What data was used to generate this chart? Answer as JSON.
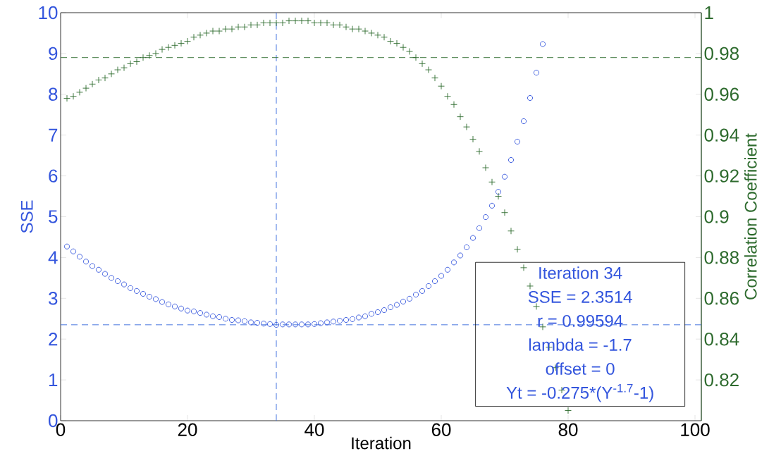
{
  "chart_data": {
    "type": "scatter",
    "xlabel": "Iteration",
    "ylabel": "SSE",
    "y2label": "Correlation Coefficient",
    "xlim": [
      0,
      101
    ],
    "xticks": [
      0,
      20,
      40,
      60,
      80,
      100
    ],
    "ylim": [
      0,
      10
    ],
    "yticks": [
      0,
      1,
      2,
      3,
      4,
      5,
      6,
      7,
      8,
      9,
      10
    ],
    "y2lim": [
      0.8,
      1
    ],
    "y2ticks": [
      0.82,
      0.84,
      0.86,
      0.88,
      0.9,
      0.92,
      0.94,
      0.96,
      0.98,
      1
    ],
    "series": [
      {
        "color": "#3355dd",
        "marker": "circle",
        "x": [
          1,
          2,
          3,
          4,
          5,
          6,
          7,
          8,
          9,
          10,
          11,
          12,
          13,
          14,
          15,
          16,
          17,
          18,
          19,
          20,
          21,
          22,
          23,
          24,
          25,
          26,
          27,
          28,
          29,
          30,
          31,
          32,
          33,
          34,
          35,
          36,
          37,
          38,
          39,
          40,
          41,
          42,
          43,
          44,
          45,
          46,
          47,
          48,
          49,
          50,
          51,
          52,
          53,
          54,
          55,
          56,
          57,
          58,
          59,
          60,
          61,
          62,
          63,
          64,
          65,
          66,
          67,
          68,
          69,
          70,
          71,
          72,
          73,
          74,
          75,
          76
        ],
        "values": [
          4.27,
          4.15,
          4.02,
          3.9,
          3.79,
          3.7,
          3.6,
          3.5,
          3.42,
          3.34,
          3.25,
          3.18,
          3.11,
          3.04,
          2.98,
          2.91,
          2.85,
          2.8,
          2.75,
          2.7,
          2.68,
          2.64,
          2.6,
          2.56,
          2.54,
          2.5,
          2.47,
          2.46,
          2.44,
          2.41,
          2.4,
          2.38,
          2.37,
          2.35,
          2.36,
          2.36,
          2.36,
          2.36,
          2.36,
          2.37,
          2.39,
          2.41,
          2.43,
          2.45,
          2.47,
          2.49,
          2.53,
          2.56,
          2.62,
          2.66,
          2.71,
          2.78,
          2.84,
          2.92,
          2.99,
          3.09,
          3.18,
          3.3,
          3.42,
          3.55,
          3.7,
          3.88,
          4.05,
          4.25,
          4.48,
          4.72,
          4.99,
          5.27,
          5.61,
          5.98,
          6.39,
          6.84,
          7.34,
          7.91,
          8.53,
          9.23
        ]
      },
      {
        "color": "#2e6b2e",
        "marker": "cross",
        "axis": "y2",
        "x": [
          1,
          2,
          3,
          4,
          5,
          6,
          7,
          8,
          9,
          10,
          11,
          12,
          13,
          14,
          15,
          16,
          17,
          18,
          19,
          20,
          21,
          22,
          23,
          24,
          25,
          26,
          27,
          28,
          29,
          30,
          31,
          32,
          33,
          34,
          35,
          36,
          37,
          38,
          39,
          40,
          41,
          42,
          43,
          44,
          45,
          46,
          47,
          48,
          49,
          50,
          51,
          52,
          53,
          54,
          55,
          56,
          57,
          58,
          59,
          60,
          61,
          62,
          63,
          64,
          65,
          66,
          67,
          68,
          69,
          70,
          71,
          72,
          73,
          74,
          75,
          76,
          77,
          78,
          79,
          80
        ],
        "values": [
          0.958,
          0.959,
          0.961,
          0.963,
          0.965,
          0.967,
          0.968,
          0.97,
          0.972,
          0.973,
          0.975,
          0.976,
          0.978,
          0.979,
          0.98,
          0.982,
          0.983,
          0.984,
          0.985,
          0.986,
          0.988,
          0.989,
          0.99,
          0.991,
          0.991,
          0.992,
          0.992,
          0.993,
          0.993,
          0.994,
          0.994,
          0.995,
          0.995,
          0.995,
          0.995,
          0.996,
          0.996,
          0.996,
          0.996,
          0.995,
          0.995,
          0.995,
          0.994,
          0.994,
          0.993,
          0.992,
          0.992,
          0.991,
          0.99,
          0.989,
          0.988,
          0.986,
          0.985,
          0.983,
          0.981,
          0.978,
          0.975,
          0.972,
          0.968,
          0.964,
          0.959,
          0.955,
          0.949,
          0.944,
          0.938,
          0.932,
          0.924,
          0.917,
          0.91,
          0.902,
          0.893,
          0.884,
          0.875,
          0.866,
          0.856,
          0.846,
          0.836,
          0.826,
          0.815,
          0.805
        ]
      }
    ],
    "ref_lines": [
      {
        "axis": "x",
        "value": 34,
        "color": "#3366dd",
        "line_style": "dashed"
      },
      {
        "axis": "y",
        "value": 2.3514,
        "color": "#3366dd",
        "line_style": "dashed"
      },
      {
        "axis": "y2",
        "value": 0.978,
        "color": "#2e6b2e",
        "line_style": "dashed"
      }
    ],
    "annotations": [
      "Iteration 34",
      "SSE = 2.3514",
      "r = 0.99594",
      "lambda = -1.7",
      "offset = 0",
      "Yt = -0.275*(Y$^{-1.7}$-1)"
    ]
  }
}
